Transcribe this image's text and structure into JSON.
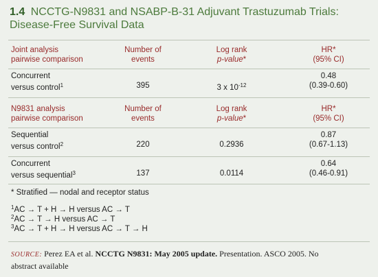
{
  "header": {
    "number": "1.4",
    "title": "NCCTG-N9831 and NSABP-B-31 Adjuvant Trastuzumab Trials: Disease-Free Survival Data"
  },
  "tables": [
    {
      "columns": [
        [
          "Joint analysis",
          "pairwise comparison"
        ],
        [
          "Number of",
          "events"
        ],
        [
          "Log rank",
          {
            "italic": "p-value",
            "after": "*"
          }
        ],
        [
          "HR*",
          "(95% CI)"
        ]
      ],
      "rows": [
        {
          "label": [
            "Concurrent",
            "versus control"
          ],
          "sup": "1",
          "events": 395,
          "p": {
            "base": "3 x 10",
            "exp": "-12"
          },
          "hr": [
            0.48,
            "(0.39-0.60)"
          ]
        }
      ]
    },
    {
      "columns": [
        [
          "N9831 analysis",
          "pairwise comparison"
        ],
        [
          "Number of",
          "events"
        ],
        [
          "Log rank",
          {
            "italic": "p-value",
            "after": "*"
          }
        ],
        [
          "HR*",
          "(95% CI)"
        ]
      ],
      "rows": [
        {
          "label": [
            "Sequential",
            "versus control"
          ],
          "sup": "2",
          "events": 220,
          "p": 0.2936,
          "hr": [
            0.87,
            "(0.67-1.13)"
          ]
        },
        {
          "label": [
            "Concurrent",
            "versus sequential"
          ],
          "sup": "3",
          "events": 137,
          "p": 0.0114,
          "hr": [
            0.64,
            "(0.46-0.91)"
          ]
        }
      ]
    }
  ],
  "footnotes": {
    "star": "* Stratified — nodal and receptor status",
    "regimens": [
      {
        "sup": "1",
        "text": "AC → T + H → H versus AC → T"
      },
      {
        "sup": "2",
        "text": "AC → T → H versus AC → T"
      },
      {
        "sup": "3",
        "text": "AC → T + H → H versus AC → T → H"
      }
    ]
  },
  "source": {
    "label": "SOURCE:",
    "authors": "Perez EA et al.",
    "bold": "NCCTG N9831: May 2005 update.",
    "rest": "Presentation. ASCO 2005. No abstract available"
  }
}
